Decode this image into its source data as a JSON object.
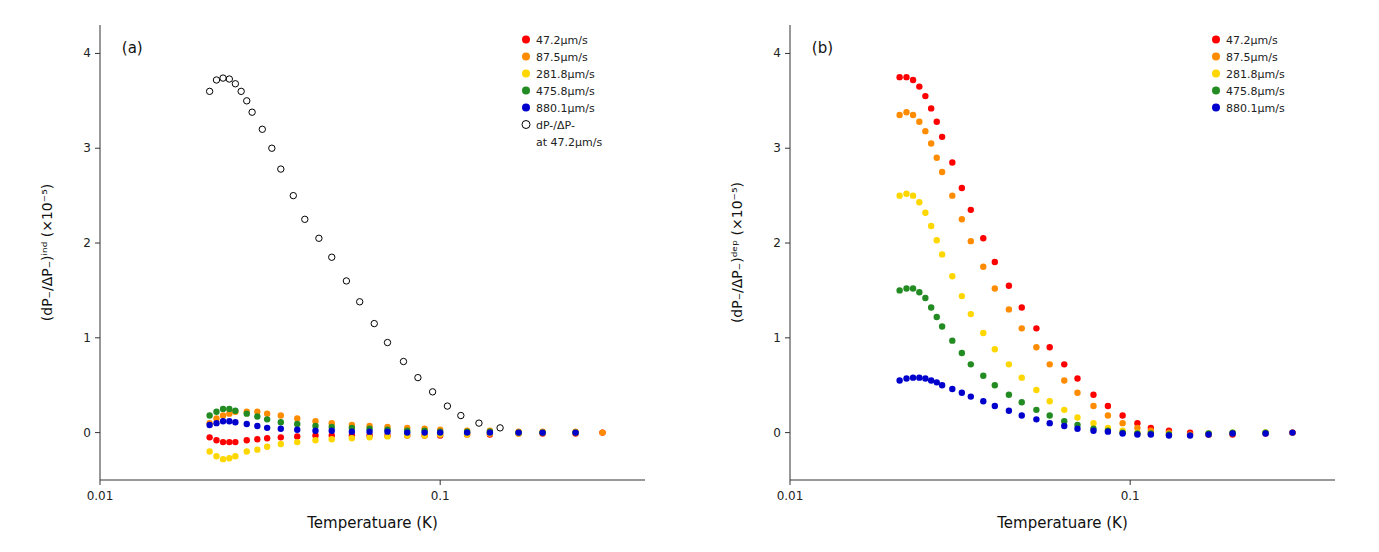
{
  "chart_data": [
    {
      "type": "scatter",
      "annotations": [
        "(a)"
      ],
      "x_label": "Temperatuare (K)",
      "y_label": "(dP₋/ΔP₋)ⁱⁿᵈ  (×10⁻⁵)",
      "log": "x",
      "xlim": [
        0.01,
        0.4
      ],
      "xticks": [
        0.01,
        0.1
      ],
      "ylim": [
        -0.5,
        4.3
      ],
      "yticks": [
        0,
        1,
        2,
        3,
        4
      ],
      "grid": false,
      "legend": "upper-right",
      "series": [
        {
          "name": "47.2μm/s",
          "color": "#FF0000",
          "marker": "circle",
          "x": [
            0.021,
            0.022,
            0.023,
            0.024,
            0.025,
            0.027,
            0.029,
            0.031,
            0.034,
            0.038,
            0.043,
            0.048,
            0.055,
            0.062,
            0.07,
            0.08,
            0.09,
            0.1,
            0.12,
            0.14,
            0.17,
            0.2,
            0.25,
            0.3
          ],
          "values": [
            -0.05,
            -0.08,
            -0.1,
            -0.1,
            -0.1,
            -0.08,
            -0.07,
            -0.06,
            -0.05,
            -0.04,
            -0.03,
            -0.03,
            -0.03,
            -0.03,
            -0.03,
            -0.03,
            -0.03,
            -0.03,
            -0.02,
            -0.02,
            -0.01,
            -0.01,
            -0.01,
            0.0
          ]
        },
        {
          "name": "87.5μm/s",
          "color": "#FF8C00",
          "marker": "circle",
          "x": [
            0.021,
            0.022,
            0.023,
            0.024,
            0.025,
            0.027,
            0.029,
            0.031,
            0.034,
            0.038,
            0.043,
            0.048,
            0.055,
            0.062,
            0.07,
            0.08,
            0.09,
            0.1,
            0.12,
            0.14,
            0.17,
            0.2,
            0.25,
            0.3
          ],
          "values": [
            0.1,
            0.15,
            0.18,
            0.2,
            0.22,
            0.22,
            0.22,
            0.2,
            0.18,
            0.15,
            0.12,
            0.1,
            0.08,
            0.07,
            0.06,
            0.05,
            0.04,
            0.03,
            0.02,
            0.02,
            0.01,
            0.01,
            0.01,
            0.0
          ]
        },
        {
          "name": "281.8μm/s",
          "color": "#FFD700",
          "marker": "circle",
          "x": [
            0.021,
            0.022,
            0.023,
            0.024,
            0.025,
            0.027,
            0.029,
            0.031,
            0.034,
            0.038,
            0.043,
            0.048,
            0.055,
            0.062,
            0.07,
            0.08,
            0.09,
            0.1,
            0.12,
            0.14,
            0.17,
            0.2,
            0.25
          ],
          "values": [
            -0.2,
            -0.25,
            -0.28,
            -0.27,
            -0.25,
            -0.2,
            -0.18,
            -0.15,
            -0.12,
            -0.1,
            -0.08,
            -0.07,
            -0.06,
            -0.05,
            -0.04,
            -0.03,
            -0.03,
            -0.02,
            -0.02,
            -0.01,
            -0.01,
            0.0,
            0.0
          ]
        },
        {
          "name": "475.8μm/s",
          "color": "#228B22",
          "marker": "circle",
          "x": [
            0.021,
            0.022,
            0.023,
            0.024,
            0.025,
            0.027,
            0.029,
            0.031,
            0.034,
            0.038,
            0.043,
            0.048,
            0.055,
            0.062,
            0.07,
            0.08,
            0.09,
            0.1,
            0.12,
            0.14,
            0.17,
            0.2,
            0.25
          ],
          "values": [
            0.18,
            0.22,
            0.25,
            0.25,
            0.23,
            0.2,
            0.17,
            0.14,
            0.11,
            0.09,
            0.07,
            0.06,
            0.05,
            0.04,
            0.03,
            0.02,
            0.02,
            0.01,
            0.01,
            0.01,
            0.0,
            0.0,
            0.0
          ]
        },
        {
          "name": "880.1μm/s",
          "color": "#0000CD",
          "marker": "circle",
          "x": [
            0.021,
            0.022,
            0.023,
            0.024,
            0.025,
            0.027,
            0.029,
            0.031,
            0.034,
            0.038,
            0.043,
            0.048,
            0.055,
            0.062,
            0.07,
            0.08,
            0.09,
            0.1,
            0.12,
            0.14,
            0.17,
            0.2,
            0.25
          ],
          "values": [
            0.08,
            0.1,
            0.12,
            0.12,
            0.11,
            0.09,
            0.07,
            0.05,
            0.04,
            0.03,
            0.02,
            0.02,
            0.01,
            0.01,
            0.01,
            0.0,
            0.0,
            0.0,
            0.0,
            0.0,
            0.0,
            0.0,
            0.0
          ]
        },
        {
          "name": "dP-/ΔP-\nat 47.2μm/s",
          "color": "#000000",
          "marker": "open-circle",
          "x": [
            0.021,
            0.022,
            0.023,
            0.024,
            0.025,
            0.026,
            0.027,
            0.028,
            0.03,
            0.032,
            0.034,
            0.037,
            0.04,
            0.044,
            0.048,
            0.053,
            0.058,
            0.064,
            0.07,
            0.078,
            0.086,
            0.095,
            0.105,
            0.115,
            0.13,
            0.15
          ],
          "values": [
            3.6,
            3.72,
            3.74,
            3.73,
            3.68,
            3.6,
            3.5,
            3.38,
            3.2,
            3.0,
            2.78,
            2.5,
            2.25,
            2.05,
            1.85,
            1.6,
            1.38,
            1.15,
            0.95,
            0.75,
            0.58,
            0.43,
            0.28,
            0.18,
            0.1,
            0.05
          ]
        }
      ]
    },
    {
      "type": "scatter",
      "annotations": [
        "(b)"
      ],
      "x_label": "Temperatuare (K)",
      "y_label": "(dP₋/ΔP₋)ᵈᵉᵖ  (×10⁻⁵)",
      "log": "x",
      "xlim": [
        0.01,
        0.4
      ],
      "xticks": [
        0.01,
        0.1
      ],
      "ylim": [
        -0.5,
        4.3
      ],
      "yticks": [
        0,
        1,
        2,
        3,
        4
      ],
      "grid": false,
      "legend": "upper-right",
      "series": [
        {
          "name": "47.2μm/s",
          "color": "#FF0000",
          "marker": "circle",
          "x": [
            0.021,
            0.022,
            0.023,
            0.024,
            0.025,
            0.026,
            0.027,
            0.028,
            0.03,
            0.032,
            0.034,
            0.037,
            0.04,
            0.044,
            0.048,
            0.053,
            0.058,
            0.064,
            0.07,
            0.078,
            0.086,
            0.095,
            0.105,
            0.115,
            0.13,
            0.15,
            0.17,
            0.2,
            0.25,
            0.3
          ],
          "values": [
            3.75,
            3.75,
            3.72,
            3.65,
            3.55,
            3.42,
            3.28,
            3.12,
            2.85,
            2.58,
            2.35,
            2.05,
            1.8,
            1.55,
            1.32,
            1.1,
            0.9,
            0.72,
            0.57,
            0.4,
            0.28,
            0.18,
            0.1,
            0.05,
            0.02,
            0.0,
            -0.02,
            -0.02,
            -0.01,
            0.0
          ]
        },
        {
          "name": "87.5μm/s",
          "color": "#FF8C00",
          "marker": "circle",
          "x": [
            0.021,
            0.022,
            0.023,
            0.024,
            0.025,
            0.026,
            0.027,
            0.028,
            0.03,
            0.032,
            0.034,
            0.037,
            0.04,
            0.044,
            0.048,
            0.053,
            0.058,
            0.064,
            0.07,
            0.078,
            0.086,
            0.095,
            0.105,
            0.115,
            0.13,
            0.15,
            0.17,
            0.2,
            0.25,
            0.3
          ],
          "values": [
            3.35,
            3.38,
            3.35,
            3.28,
            3.18,
            3.05,
            2.9,
            2.75,
            2.5,
            2.25,
            2.02,
            1.75,
            1.52,
            1.3,
            1.1,
            0.9,
            0.72,
            0.55,
            0.42,
            0.28,
            0.18,
            0.1,
            0.05,
            0.02,
            0.0,
            -0.02,
            -0.02,
            -0.01,
            0.0,
            0.0
          ]
        },
        {
          "name": "281.8μm/s",
          "color": "#FFD700",
          "marker": "circle",
          "x": [
            0.021,
            0.022,
            0.023,
            0.024,
            0.025,
            0.026,
            0.027,
            0.028,
            0.03,
            0.032,
            0.034,
            0.037,
            0.04,
            0.044,
            0.048,
            0.053,
            0.058,
            0.064,
            0.07,
            0.078,
            0.086,
            0.095,
            0.105,
            0.115,
            0.13,
            0.17,
            0.2,
            0.25
          ],
          "values": [
            2.5,
            2.52,
            2.5,
            2.43,
            2.32,
            2.18,
            2.03,
            1.88,
            1.65,
            1.44,
            1.25,
            1.05,
            0.88,
            0.72,
            0.58,
            0.45,
            0.33,
            0.24,
            0.16,
            0.1,
            0.05,
            0.02,
            0.0,
            -0.01,
            -0.02,
            -0.01,
            0.0,
            0.0
          ]
        },
        {
          "name": "475.8μm/s",
          "color": "#228B22",
          "marker": "circle",
          "x": [
            0.021,
            0.022,
            0.023,
            0.024,
            0.025,
            0.026,
            0.027,
            0.028,
            0.03,
            0.032,
            0.034,
            0.037,
            0.04,
            0.044,
            0.048,
            0.053,
            0.058,
            0.064,
            0.07,
            0.078,
            0.086,
            0.095,
            0.105,
            0.115,
            0.13,
            0.17,
            0.2,
            0.25
          ],
          "values": [
            1.5,
            1.52,
            1.52,
            1.48,
            1.42,
            1.32,
            1.22,
            1.12,
            0.97,
            0.84,
            0.72,
            0.6,
            0.5,
            0.4,
            0.32,
            0.24,
            0.18,
            0.12,
            0.08,
            0.04,
            0.02,
            0.0,
            -0.01,
            -0.01,
            -0.02,
            -0.01,
            0.0,
            0.0
          ]
        },
        {
          "name": "880.1μm/s",
          "color": "#0000CD",
          "marker": "circle",
          "x": [
            0.021,
            0.022,
            0.023,
            0.024,
            0.025,
            0.026,
            0.027,
            0.028,
            0.03,
            0.032,
            0.034,
            0.037,
            0.04,
            0.044,
            0.048,
            0.053,
            0.058,
            0.064,
            0.07,
            0.078,
            0.086,
            0.095,
            0.105,
            0.115,
            0.13,
            0.15,
            0.17,
            0.2,
            0.25,
            0.3
          ],
          "values": [
            0.55,
            0.57,
            0.58,
            0.58,
            0.57,
            0.55,
            0.53,
            0.5,
            0.46,
            0.42,
            0.38,
            0.33,
            0.28,
            0.23,
            0.18,
            0.14,
            0.1,
            0.07,
            0.04,
            0.02,
            0.01,
            -0.01,
            -0.02,
            -0.02,
            -0.03,
            -0.03,
            -0.02,
            -0.01,
            -0.01,
            0.0
          ]
        }
      ]
    }
  ]
}
